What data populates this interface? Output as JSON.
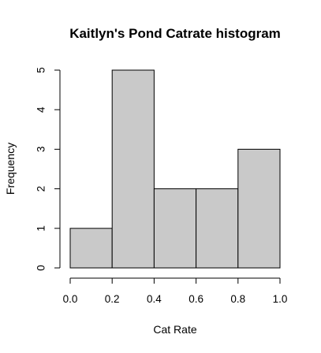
{
  "chart_data": {
    "type": "bar",
    "title": "Kaitlyn's Pond Catrate histogram",
    "xlabel": "Cat Rate",
    "ylabel": "Frequency",
    "bins": [
      {
        "x0": 0.0,
        "x1": 0.2,
        "count": 1
      },
      {
        "x0": 0.2,
        "x1": 0.4,
        "count": 5
      },
      {
        "x0": 0.4,
        "x1": 0.6,
        "count": 2
      },
      {
        "x0": 0.6,
        "x1": 0.8,
        "count": 2
      },
      {
        "x0": 0.8,
        "x1": 1.0,
        "count": 3
      }
    ],
    "xlim": [
      0.0,
      1.0
    ],
    "ylim": [
      0,
      5
    ],
    "x_ticks": [
      "0.0",
      "0.2",
      "0.4",
      "0.6",
      "0.8",
      "1.0"
    ],
    "y_ticks": [
      "0",
      "1",
      "2",
      "3",
      "4",
      "5"
    ],
    "grid": false
  }
}
